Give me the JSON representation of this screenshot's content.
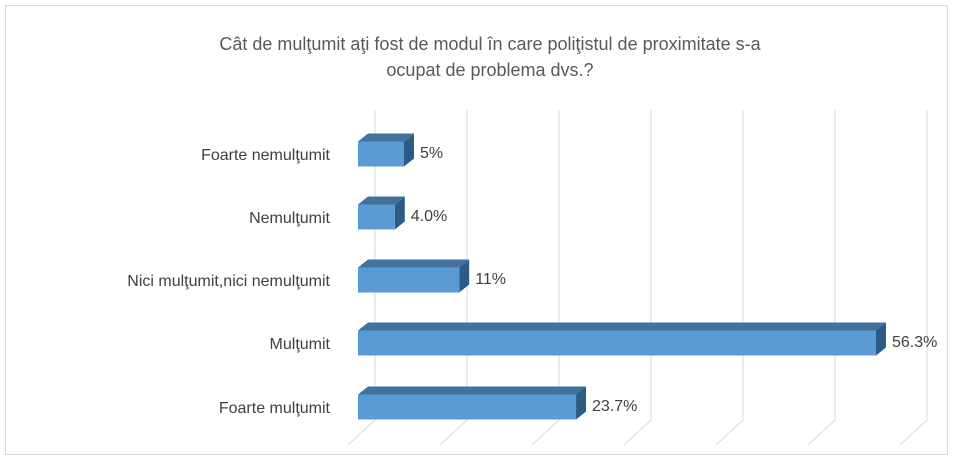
{
  "chart_data": {
    "type": "bar3d-horizontal",
    "title": [
      "Cât de mulţumit aţi fost de modul în care poliţistul de proximitate s-a",
      "ocupat de problema dvs.?"
    ],
    "categories": [
      "Foarte nemulţumit",
      "Nemulţumit",
      "Nici mulţumit,nici nemulţumit",
      "Mulţumit",
      "Foarte mulţumit"
    ],
    "values": [
      5,
      4.0,
      11,
      56.3,
      23.7
    ],
    "value_labels": [
      "5%",
      "4.0%",
      "11%",
      "56.3%",
      "23.7%"
    ],
    "color": "#5b9bd5",
    "xlim": [
      0,
      60
    ],
    "xticks": [
      0,
      10,
      20,
      30,
      40,
      50,
      60
    ],
    "grid": true
  }
}
